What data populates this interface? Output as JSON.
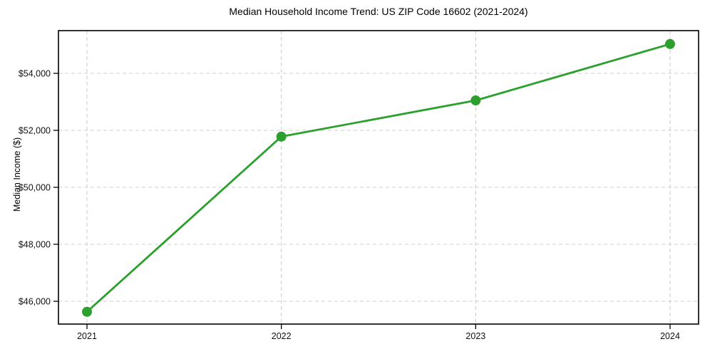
{
  "chart_data": {
    "type": "line",
    "title": "Median Household Income Trend: US ZIP Code 16602 (2021-2024)",
    "xlabel": "",
    "ylabel": "Median Income ($)",
    "categories": [
      "2021",
      "2022",
      "2023",
      "2024"
    ],
    "series": [
      {
        "name": "Median Household Income",
        "values": [
          45630,
          51780,
          53050,
          55030
        ]
      }
    ],
    "values": [
      45630,
      51780,
      53050,
      55030
    ],
    "ylim": [
      45200,
      55500
    ],
    "yticks": {
      "values": [
        46000,
        48000,
        50000,
        52000,
        54000
      ],
      "labels": [
        "$46,000",
        "$48,000",
        "$50,000",
        "$52,000",
        "$54,000"
      ]
    },
    "grid": "dashed-both-axes",
    "legend": "none",
    "marker": "circle",
    "colors": {
      "line": "#2ca02c",
      "marker": "#2ca02c",
      "grid": "#cdcdcd",
      "frame": "#000000",
      "text": "#111111",
      "background": "#ffffff"
    }
  }
}
